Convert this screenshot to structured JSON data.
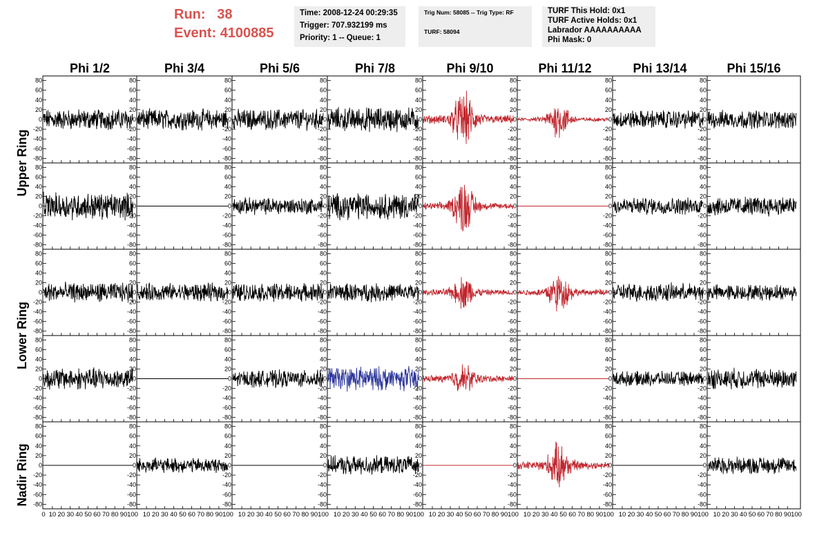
{
  "header": {
    "run_label": "Run:",
    "run_value": "38",
    "event_label": "Event:",
    "event_value": "4100885",
    "time": "Time: 2008-12-24 00:29:35",
    "trigger": "Trigger: 707.932199 ms",
    "priority": "Priority: 1 -- Queue: 1",
    "trig_num": "Trig Num: 58085 -- Trig Type: RF",
    "turf": "TURF: 58094",
    "turf_this_hold": "TURF This Hold: 0x1",
    "turf_active_holds": "TURF Active Holds: 0x1",
    "labrador": "Labrador AAAAAAAAAA",
    "phi_mask": "Phi Mask: 0"
  },
  "chart_data": {
    "type": "line",
    "columns": [
      "Phi 1/2",
      "Phi 3/4",
      "Phi 5/6",
      "Phi 7/8",
      "Phi 9/10",
      "Phi 11/12",
      "Phi 13/14",
      "Phi 15/16"
    ],
    "ring_labels": [
      "Upper Ring",
      "Lower Ring",
      "Nadir Ring"
    ],
    "ylim": [
      -85,
      85
    ],
    "xlim": [
      0,
      100
    ],
    "yticks": [
      80,
      60,
      40,
      20,
      0,
      -20,
      -40,
      -60,
      -80
    ],
    "xticks_first": [
      "0",
      "10",
      "20",
      "30",
      "40",
      "50",
      "60",
      "70",
      "80",
      "90",
      "100"
    ],
    "xticks_other": [
      "10",
      "20",
      "30",
      "40",
      "50",
      "60",
      "70",
      "80",
      "90",
      "100"
    ],
    "colors": {
      "black": "#000000",
      "red": "#c0262d",
      "blue": "#2b3599"
    },
    "panels": [
      [
        {
          "color": "black",
          "amp": 17,
          "burst": 0
        },
        {
          "color": "black",
          "amp": 17,
          "burst": 0
        },
        {
          "color": "black",
          "amp": 17,
          "burst": 0
        },
        {
          "color": "black",
          "amp": 20,
          "burst": 0
        },
        {
          "color": "red",
          "amp": 20,
          "burst": 40
        },
        {
          "color": "red",
          "amp": 9,
          "burst": 28
        },
        {
          "color": "black",
          "amp": 15,
          "burst": 0
        },
        {
          "color": "black",
          "amp": 15,
          "burst": 0
        }
      ],
      [
        {
          "color": "black",
          "amp": 22,
          "burst": 0
        },
        {
          "color": "flat",
          "amp": 0,
          "burst": 0
        },
        {
          "color": "black",
          "amp": 14,
          "burst": 0
        },
        {
          "color": "black",
          "amp": 22,
          "burst": 0
        },
        {
          "color": "red",
          "amp": 16,
          "burst": 38
        },
        {
          "color": "flat_red",
          "amp": 0,
          "burst": 0
        },
        {
          "color": "black",
          "amp": 14,
          "burst": 0
        },
        {
          "color": "black",
          "amp": 16,
          "burst": 0
        }
      ],
      [
        {
          "color": "black",
          "amp": 16,
          "burst": 0
        },
        {
          "color": "black",
          "amp": 15,
          "burst": 0
        },
        {
          "color": "black",
          "amp": 15,
          "burst": 0
        },
        {
          "color": "black",
          "amp": 15,
          "burst": 0
        },
        {
          "color": "red",
          "amp": 14,
          "burst": 24
        },
        {
          "color": "red",
          "amp": 14,
          "burst": 28
        },
        {
          "color": "black",
          "amp": 15,
          "burst": 0
        },
        {
          "color": "black",
          "amp": 13,
          "burst": 0
        }
      ],
      [
        {
          "color": "black",
          "amp": 18,
          "burst": 0
        },
        {
          "color": "flat",
          "amp": 0,
          "burst": 0
        },
        {
          "color": "black",
          "amp": 14,
          "burst": 0
        },
        {
          "color": "blue",
          "amp": 20,
          "burst": 0
        },
        {
          "color": "red",
          "amp": 16,
          "burst": 20
        },
        {
          "color": "flat_red",
          "amp": 0,
          "burst": 0
        },
        {
          "color": "black",
          "amp": 12,
          "burst": 0
        },
        {
          "color": "black",
          "amp": 17,
          "burst": 0
        }
      ],
      [
        {
          "color": "flat",
          "amp": 0,
          "burst": 0
        },
        {
          "color": "black",
          "amp": 12,
          "burst": 0
        },
        {
          "color": "flat",
          "amp": 0,
          "burst": 0
        },
        {
          "color": "black",
          "amp": 15,
          "burst": 0
        },
        {
          "color": "flat_red",
          "amp": 0,
          "burst": 0
        },
        {
          "color": "red",
          "amp": 18,
          "burst": 32
        },
        {
          "color": "flat",
          "amp": 0,
          "burst": 0
        },
        {
          "color": "black",
          "amp": 14,
          "burst": 0
        }
      ]
    ]
  }
}
